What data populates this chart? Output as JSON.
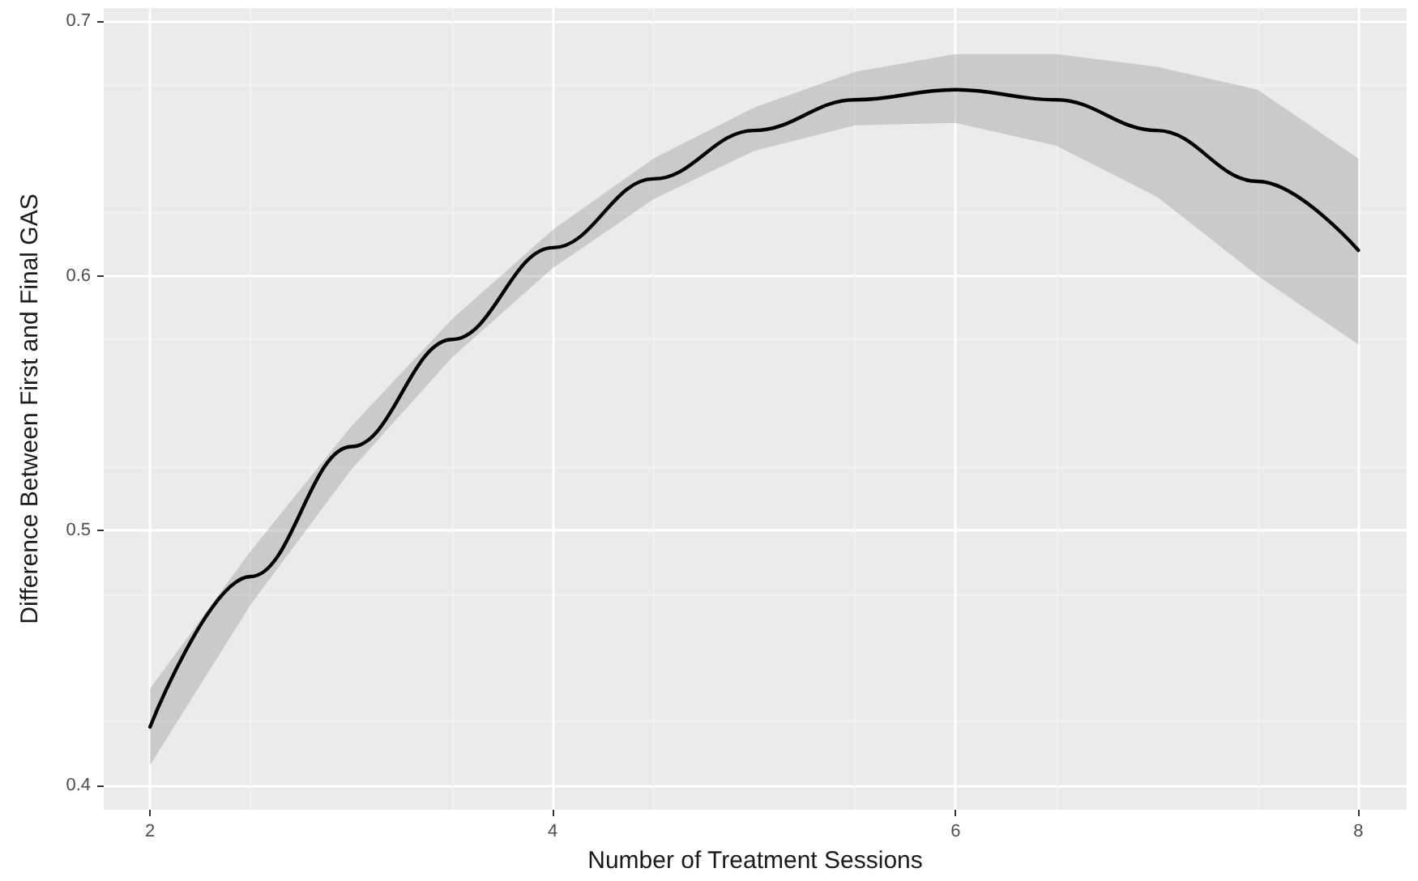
{
  "chart_data": {
    "type": "line",
    "xlabel": "Number of Treatment Sessions",
    "ylabel": "Difference Between First and Final GAS",
    "x": [
      2,
      2.5,
      3,
      3.5,
      4,
      4.5,
      5,
      5.5,
      6,
      6.5,
      7,
      7.5,
      8
    ],
    "series": [
      {
        "color": "#000000",
        "values": [
          0.423,
          0.482,
          0.533,
          0.575,
          0.611,
          0.638,
          0.657,
          0.669,
          0.673,
          0.669,
          0.657,
          0.637,
          0.61
        ],
        "lower": [
          0.408,
          0.471,
          0.524,
          0.568,
          0.603,
          0.63,
          0.649,
          0.659,
          0.66,
          0.651,
          0.631,
          0.6,
          0.573
        ],
        "upper": [
          0.438,
          0.492,
          0.541,
          0.583,
          0.618,
          0.646,
          0.666,
          0.68,
          0.687,
          0.687,
          0.682,
          0.673,
          0.646
        ]
      }
    ],
    "xlim": [
      1.77,
      8.24
    ],
    "xticks": [
      2,
      4,
      6,
      8
    ],
    "ylim": [
      0.3905,
      0.705
    ],
    "yticks": [
      0.4,
      0.5,
      0.6,
      0.7
    ],
    "grid": true,
    "marker": "none",
    "line_style": "solid"
  }
}
